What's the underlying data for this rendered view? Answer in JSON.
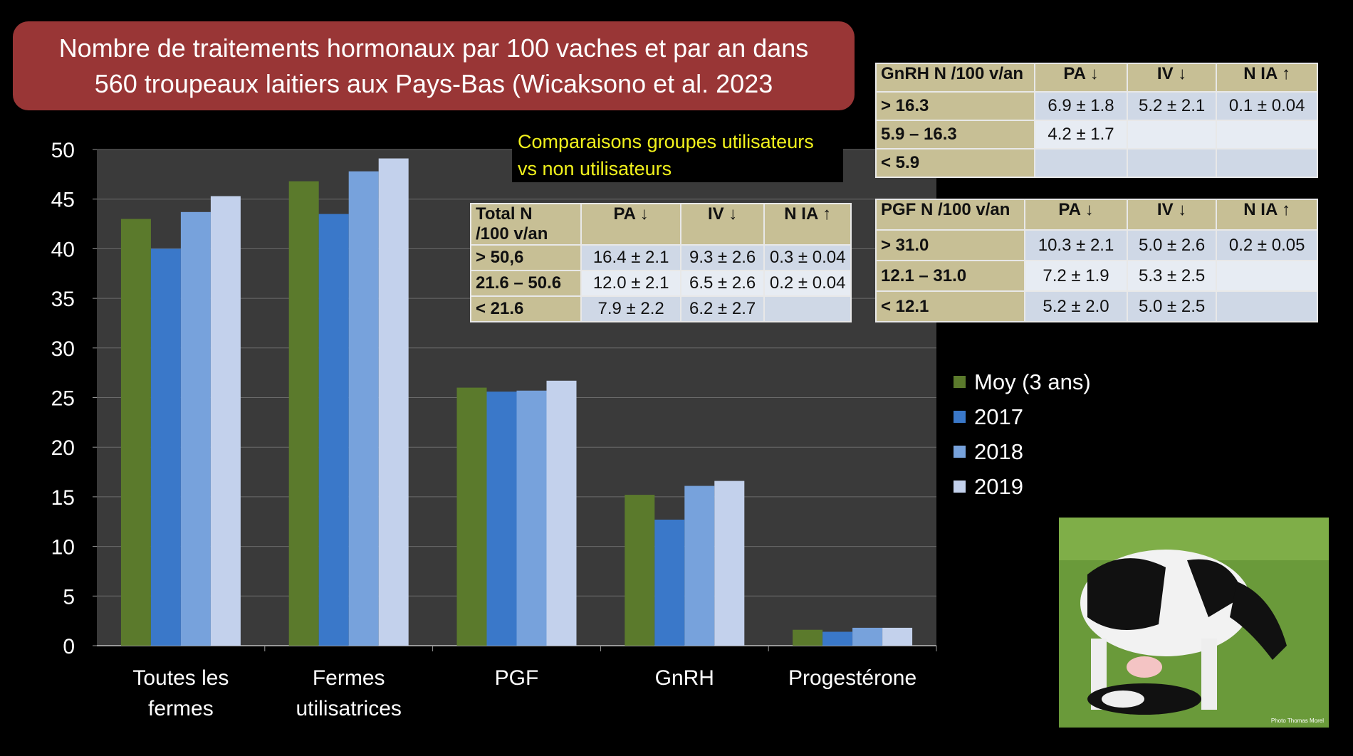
{
  "title": "Nombre de traitements hormonaux par 100 vaches et par an dans\n560 troupeaux laitiers aux Pays-Bas (Wicaksono et al. 2023",
  "comparison_note": "Comparaisons groupes utilisateurs\nvs non utilisateurs",
  "colors": {
    "Moy (3 ans)": "#5b7a2c",
    "2017": "#3a78c9",
    "2018": "#77a2dc",
    "2019": "#c3d1ec",
    "title_bg": "#993636",
    "plot_bg": "#3a3a3a"
  },
  "chart_data": {
    "type": "bar",
    "categories": [
      "Toutes les\nfermes",
      "Fermes\nutilisatrices",
      "PGF",
      "GnRH",
      "Progestérone"
    ],
    "series": [
      {
        "name": "Moy (3 ans)",
        "values": [
          43.0,
          46.8,
          26.0,
          15.2,
          1.6
        ]
      },
      {
        "name": "2017",
        "values": [
          40.0,
          43.5,
          25.6,
          12.7,
          1.4
        ]
      },
      {
        "name": "2018",
        "values": [
          43.7,
          47.8,
          25.7,
          16.1,
          1.8
        ]
      },
      {
        "name": "2019",
        "values": [
          45.3,
          49.1,
          26.7,
          16.6,
          1.8
        ]
      }
    ],
    "yticks": [
      "0",
      "5",
      "10",
      "15",
      "20",
      "25",
      "30",
      "35",
      "40",
      "45",
      "50"
    ],
    "ylim": [
      0,
      50
    ],
    "grid": true,
    "legend": "right"
  },
  "tables": {
    "total": {
      "headers": [
        "Total N\n/100 v/an",
        "PA ↓",
        "IV ↓",
        "N IA ↑"
      ],
      "rows": [
        [
          "> 50,6",
          "16.4 ± 2.1",
          "9.3 ± 2.6",
          "0.3 ± 0.04"
        ],
        [
          "21.6 – 50.6",
          "12.0 ± 2.1",
          "6.5 ± 2.6",
          "0.2 ± 0.04"
        ],
        [
          "< 21.6",
          "7.9 ± 2.2",
          "6.2 ± 2.7",
          ""
        ]
      ]
    },
    "gnrh": {
      "headers": [
        "GnRH N /100 v/an",
        "PA ↓",
        "IV ↓",
        "N IA ↑"
      ],
      "rows": [
        [
          "> 16.3",
          "6.9 ± 1.8",
          "5.2 ± 2.1",
          "0.1 ± 0.04"
        ],
        [
          "5.9 – 16.3",
          "4.2 ± 1.7",
          "",
          ""
        ],
        [
          "< 5.9",
          "",
          "",
          ""
        ]
      ]
    },
    "pgf": {
      "headers": [
        "PGF N /100 v/an",
        "PA ↓",
        "IV ↓",
        "N IA ↑"
      ],
      "rows": [
        [
          "> 31.0",
          "10.3 ± 2.1",
          "5.0 ± 2.6",
          "0.2 ± 0.05"
        ],
        [
          "12.1 – 31.0",
          "7.2 ± 1.9",
          "5.3 ± 2.5",
          ""
        ],
        [
          "< 12.1",
          "5.2 ± 2.0",
          "5.0 ± 2.5",
          ""
        ]
      ]
    }
  },
  "photo": {
    "credit": "Photo Thomas Morel",
    "subject": "cow-and-calf-photo"
  }
}
